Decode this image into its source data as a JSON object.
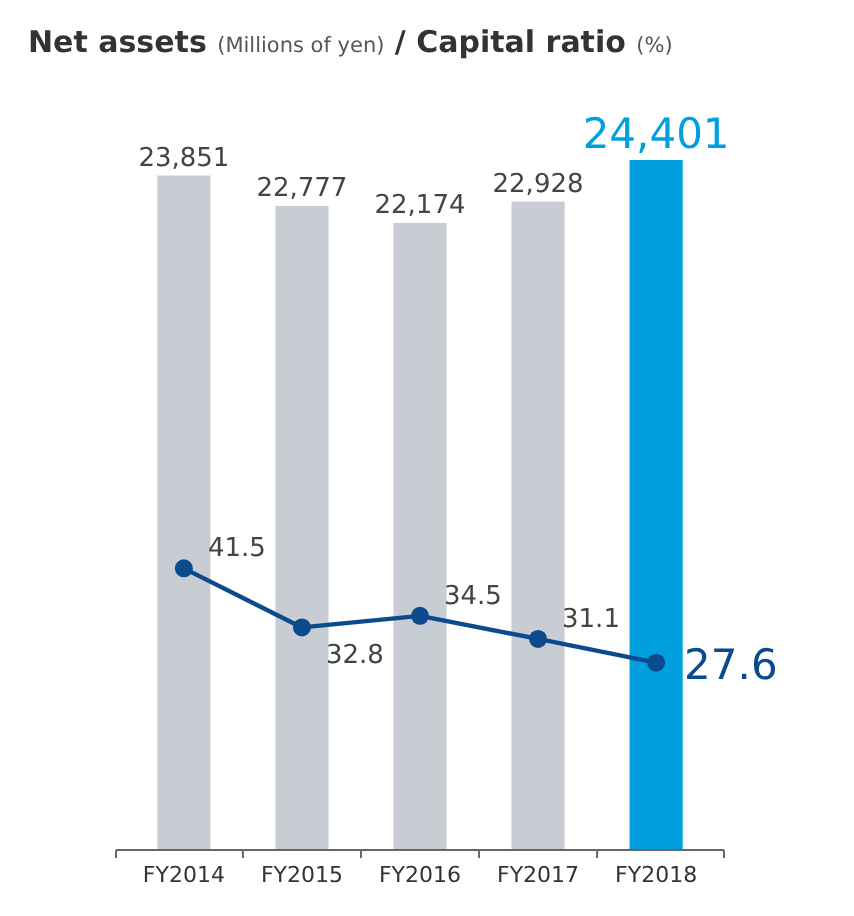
{
  "chart_data": {
    "type": "bar",
    "title": "Net assets (Millions of yen) / Capital ratio (%)",
    "categories": [
      "FY2014",
      "FY2015",
      "FY2016",
      "FY2017",
      "FY2018"
    ],
    "series": [
      {
        "colors": [
          "#c8cdd3",
          "#c8cdd3",
          "#c8cdd3",
          "#c8cdd3",
          "#00a0e0"
        ],
        "values": [
          23851,
          22777,
          22174,
          22928,
          24401
        ],
        "value_labels": [
          "23,851",
          "22,777",
          "22,174",
          "22,928",
          "24,401"
        ]
      },
      {
        "type": "line",
        "axis": "y2",
        "color": "#0b4a8c",
        "marker": "circle",
        "values": [
          41.5,
          32.8,
          34.5,
          31.1,
          27.6
        ],
        "value_labels": [
          "41.5",
          "32.8",
          "34.5",
          "31.1",
          "27.6"
        ]
      }
    ],
    "data_labels": true
  }
}
